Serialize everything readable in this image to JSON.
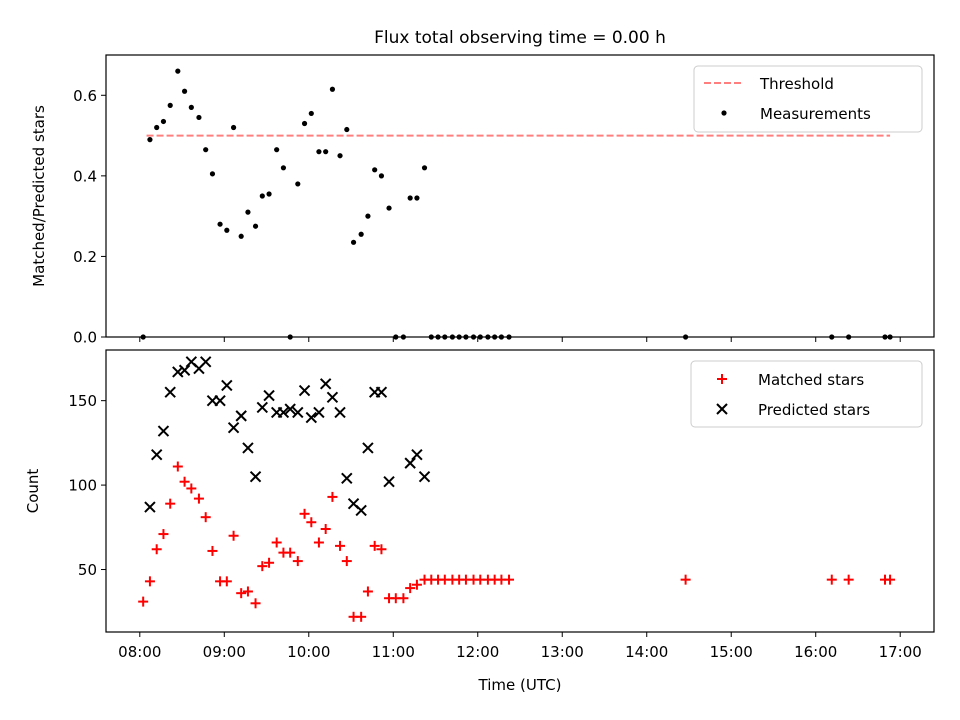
{
  "chart_data": [
    {
      "type": "scatter",
      "title": "Flux total observing time = 0.00 h",
      "xlabel": "",
      "ylabel": "Matched/Predicted stars",
      "xlim": [
        7.6,
        17.4
      ],
      "ylim": [
        0,
        0.7
      ],
      "yticks": [
        0.0,
        0.2,
        0.4,
        0.6
      ],
      "ytick_labels": [
        "0.0",
        "0.2",
        "0.4",
        "0.6"
      ],
      "legend_position": "top-right",
      "threshold": {
        "name": "Threshold",
        "x": [
          8.08,
          16.88
        ],
        "y": 0.5,
        "color": "#ff7f7f"
      },
      "series": [
        {
          "name": "Measurements",
          "color": "#000000",
          "x": [
            8.04,
            8.12,
            8.2,
            8.28,
            8.36,
            8.45,
            8.53,
            8.61,
            8.7,
            8.78,
            8.86,
            8.95,
            9.03,
            9.11,
            9.2,
            9.28,
            9.37,
            9.45,
            9.53,
            9.62,
            9.7,
            9.78,
            9.87,
            9.95,
            10.03,
            10.12,
            10.2,
            10.28,
            10.37,
            10.45,
            10.53,
            10.62,
            10.7,
            10.78,
            10.86,
            10.95,
            11.03,
            11.12,
            11.2,
            11.28,
            11.37,
            11.45,
            11.53,
            11.61,
            11.7,
            11.78,
            11.86,
            11.95,
            12.03,
            12.12,
            12.2,
            12.28,
            12.37,
            14.46,
            16.19,
            16.39,
            16.82,
            16.88
          ],
          "y": [
            0.0,
            0.49,
            0.52,
            0.535,
            0.575,
            0.66,
            0.61,
            0.57,
            0.545,
            0.465,
            0.405,
            0.28,
            0.265,
            0.52,
            0.25,
            0.31,
            0.275,
            0.35,
            0.355,
            0.465,
            0.42,
            0.0,
            0.38,
            0.53,
            0.555,
            0.46,
            0.46,
            0.615,
            0.45,
            0.515,
            0.235,
            0.255,
            0.3,
            0.415,
            0.4,
            0.32,
            0.0,
            0.0,
            0.345,
            0.345,
            0.42,
            0.0,
            0.0,
            0.0,
            0.0,
            0.0,
            0.0,
            0.0,
            0.0,
            0.0,
            0.0,
            0.0,
            0.0,
            0.0,
            0.0,
            0.0,
            0.0,
            0.0
          ]
        }
      ]
    },
    {
      "type": "scatter",
      "title": "",
      "xlabel": "Time (UTC)",
      "ylabel": "Count",
      "xlim": [
        7.6,
        17.4
      ],
      "ylim": [
        13,
        180
      ],
      "xticks": [
        8,
        9,
        10,
        11,
        12,
        13,
        14,
        15,
        16,
        17
      ],
      "xtick_labels": [
        "08:00",
        "09:00",
        "10:00",
        "11:00",
        "12:00",
        "13:00",
        "14:00",
        "15:00",
        "16:00",
        "17:00"
      ],
      "yticks": [
        50,
        100,
        150
      ],
      "ytick_labels": [
        "50",
        "100",
        "150"
      ],
      "legend_position": "top-right",
      "series": [
        {
          "name": "Matched stars",
          "color": "#ff0000",
          "marker": "plus",
          "x": [
            8.04,
            8.12,
            8.2,
            8.28,
            8.36,
            8.45,
            8.53,
            8.61,
            8.7,
            8.78,
            8.86,
            8.95,
            9.03,
            9.11,
            9.2,
            9.28,
            9.37,
            9.45,
            9.53,
            9.62,
            9.7,
            9.78,
            9.87,
            9.95,
            10.03,
            10.12,
            10.2,
            10.28,
            10.37,
            10.45,
            10.53,
            10.62,
            10.7,
            10.78,
            10.86,
            10.95,
            11.03,
            11.12,
            11.2,
            11.28,
            11.37,
            11.45,
            11.53,
            11.61,
            11.7,
            11.78,
            11.86,
            11.95,
            12.03,
            12.12,
            12.2,
            12.28,
            12.37,
            14.46,
            16.19,
            16.39,
            16.82,
            16.88
          ],
          "y": [
            31,
            43,
            62,
            71,
            89,
            111,
            102,
            98,
            92,
            81,
            61,
            43,
            43,
            70,
            36,
            37,
            30,
            52,
            54,
            66,
            60,
            60,
            55,
            83,
            78,
            66,
            74,
            93,
            64,
            55,
            22,
            22,
            37,
            64,
            62,
            33,
            33,
            33,
            39,
            41,
            44,
            44,
            44,
            44,
            44,
            44,
            44,
            44,
            44,
            44,
            44,
            44,
            44,
            44,
            44,
            44,
            44,
            44
          ]
        },
        {
          "name": "Predicted stars",
          "color": "#000000",
          "marker": "x",
          "x": [
            8.12,
            8.2,
            8.28,
            8.36,
            8.45,
            8.53,
            8.61,
            8.7,
            8.78,
            8.86,
            8.95,
            9.03,
            9.11,
            9.2,
            9.28,
            9.37,
            9.45,
            9.53,
            9.62,
            9.7,
            9.78,
            9.87,
            9.95,
            10.03,
            10.12,
            10.2,
            10.28,
            10.37,
            10.45,
            10.53,
            10.62,
            10.7,
            10.78,
            10.86,
            10.95,
            11.2,
            11.28,
            11.37
          ],
          "y": [
            87,
            118,
            132,
            155,
            167,
            168,
            173,
            169,
            173,
            150,
            150,
            159,
            134,
            141,
            122,
            105,
            146,
            153,
            143,
            143,
            145,
            143,
            156,
            140,
            143,
            160,
            152,
            143,
            104,
            89,
            85,
            122,
            155,
            155,
            102,
            113,
            118,
            105
          ]
        }
      ]
    }
  ]
}
